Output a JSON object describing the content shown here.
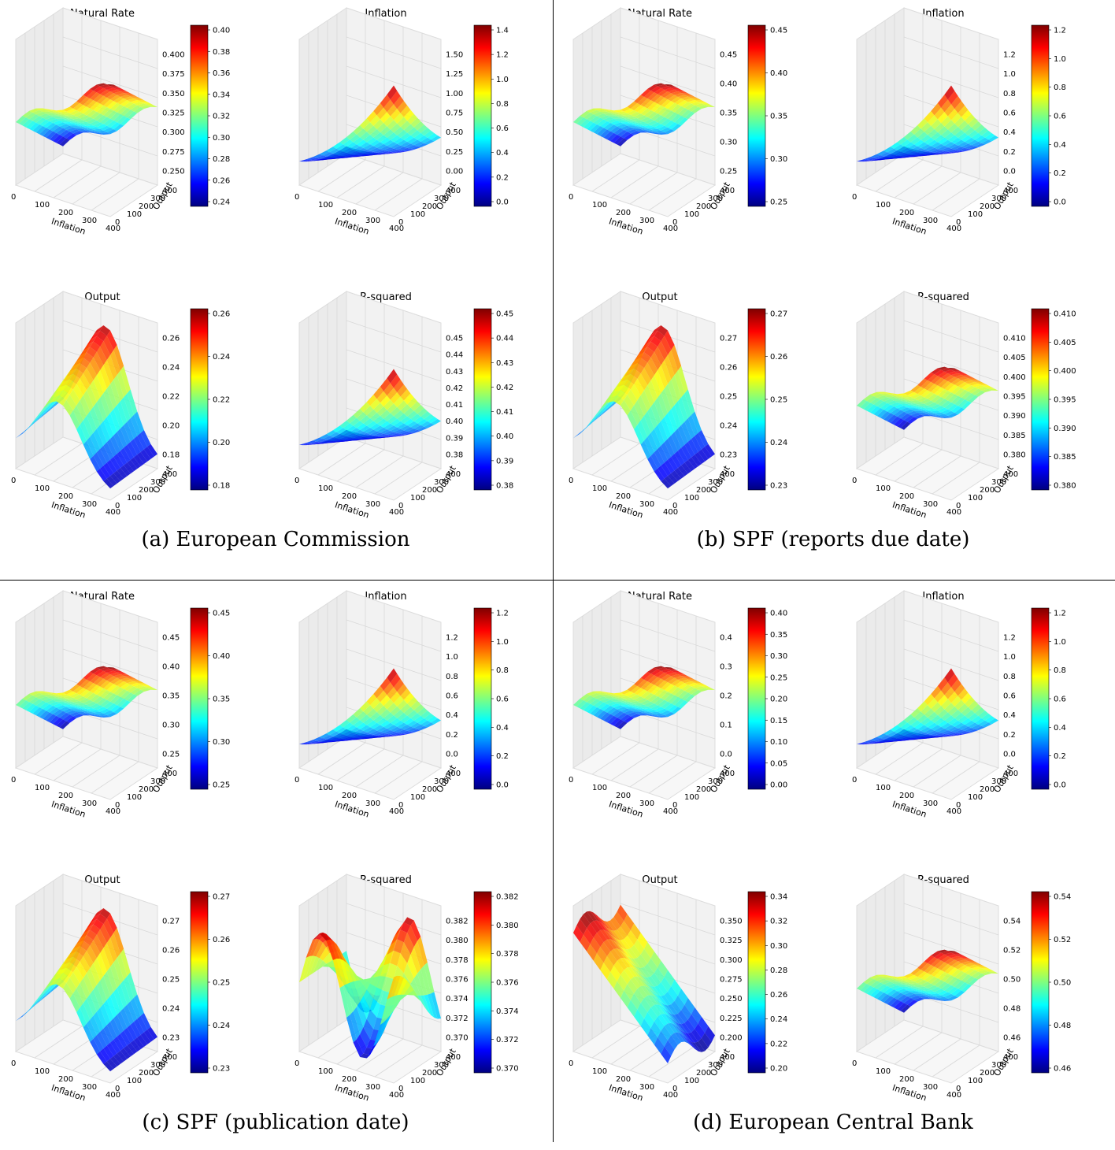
{
  "panels": [
    {
      "caption": "(a) European Commission",
      "charts": [
        {
          "title": "Natural Rate",
          "zlabel": "Coefficient",
          "zticks": [
            "0.400",
            "0.375",
            "0.350",
            "0.325",
            "0.300",
            "0.275",
            "0.250"
          ],
          "cbar": [
            "0.40",
            "0.38",
            "0.36",
            "0.34",
            "0.32",
            "0.30",
            "0.28",
            "0.26",
            "0.24"
          ],
          "shape": "ridge"
        },
        {
          "title": "Inflation",
          "zlabel": "Coefficient",
          "zticks": [
            "1.50",
            "1.25",
            "1.00",
            "0.75",
            "0.50",
            "0.25",
            "0.00"
          ],
          "cbar": [
            "1.4",
            "1.2",
            "1.0",
            "0.8",
            "0.6",
            "0.4",
            "0.2",
            "0.0"
          ],
          "shape": "rise"
        },
        {
          "title": "Output",
          "zlabel": "Coefficient",
          "zticks": [
            "0.26",
            "0.24",
            "0.22",
            "0.20",
            "0.18"
          ],
          "cbar": [
            "0.26",
            "0.24",
            "0.22",
            "0.20",
            "0.18"
          ],
          "shape": "dome"
        },
        {
          "title": "R-squared",
          "zlabel": "R-squared",
          "zticks": [
            "0.45",
            "0.44",
            "0.43",
            "0.42",
            "0.41",
            "0.40",
            "0.39",
            "0.38"
          ],
          "cbar": [
            "0.45",
            "0.44",
            "0.43",
            "0.42",
            "0.41",
            "0.40",
            "0.39",
            "0.38"
          ],
          "shape": "rise"
        }
      ]
    },
    {
      "caption": "(b) SPF (reports due date)",
      "charts": [
        {
          "title": "Natural Rate",
          "zlabel": "Coefficient",
          "zticks": [
            "0.45",
            "0.40",
            "0.35",
            "0.30",
            "0.25"
          ],
          "cbar": [
            "0.45",
            "0.40",
            "0.35",
            "0.30",
            "0.25"
          ],
          "shape": "ridge"
        },
        {
          "title": "Inflation",
          "zlabel": "Coefficient",
          "zticks": [
            "1.2",
            "1.0",
            "0.8",
            "0.6",
            "0.4",
            "0.2",
            "0.0"
          ],
          "cbar": [
            "1.2",
            "1.0",
            "0.8",
            "0.6",
            "0.4",
            "0.2",
            "0.0"
          ],
          "shape": "rise"
        },
        {
          "title": "Output",
          "zlabel": "Coefficient",
          "zticks": [
            "0.27",
            "0.26",
            "0.25",
            "0.24",
            "0.23"
          ],
          "cbar": [
            "0.27",
            "0.26",
            "0.25",
            "0.24",
            "0.23"
          ],
          "shape": "dome"
        },
        {
          "title": "R-squared",
          "zlabel": "R-squared",
          "zticks": [
            "0.410",
            "0.405",
            "0.400",
            "0.395",
            "0.390",
            "0.385",
            "0.380"
          ],
          "cbar": [
            "0.410",
            "0.405",
            "0.400",
            "0.395",
            "0.390",
            "0.385",
            "0.380"
          ],
          "shape": "ridge"
        }
      ]
    },
    {
      "caption": "(c) SPF (publication date)",
      "charts": [
        {
          "title": "Natural Rate",
          "zlabel": "Coefficient",
          "zticks": [
            "0.45",
            "0.40",
            "0.35",
            "0.30",
            "0.25"
          ],
          "cbar": [
            "0.45",
            "0.40",
            "0.35",
            "0.30",
            "0.25"
          ],
          "shape": "ridge"
        },
        {
          "title": "Inflation",
          "zlabel": "Coefficient",
          "zticks": [
            "1.2",
            "1.0",
            "0.8",
            "0.6",
            "0.4",
            "0.2",
            "0.0"
          ],
          "cbar": [
            "1.2",
            "1.0",
            "0.8",
            "0.6",
            "0.4",
            "0.2",
            "0.0"
          ],
          "shape": "rise"
        },
        {
          "title": "Output",
          "zlabel": "Coefficient",
          "zticks": [
            "0.27",
            "0.26",
            "0.25",
            "0.24",
            "0.23"
          ],
          "cbar": [
            "0.27",
            "0.26",
            "0.25",
            "0.24",
            "0.23"
          ],
          "shape": "dome"
        },
        {
          "title": "R-squared",
          "zlabel": "R-squared",
          "zticks": [
            "0.382",
            "0.380",
            "0.378",
            "0.376",
            "0.374",
            "0.372",
            "0.370"
          ],
          "cbar": [
            "0.382",
            "0.380",
            "0.378",
            "0.376",
            "0.374",
            "0.372",
            "0.370"
          ],
          "shape": "wave"
        }
      ]
    },
    {
      "caption": "(d) European Central Bank",
      "charts": [
        {
          "title": "Natural Rate",
          "zlabel": "Coefficient",
          "zticks": [
            "0.4",
            "0.3",
            "0.2",
            "0.1",
            "0.0"
          ],
          "cbar": [
            "0.40",
            "0.35",
            "0.30",
            "0.25",
            "0.20",
            "0.15",
            "0.10",
            "0.05",
            "0.00"
          ],
          "shape": "ridge"
        },
        {
          "title": "Inflation",
          "zlabel": "Coefficient",
          "zticks": [
            "1.2",
            "1.0",
            "0.8",
            "0.6",
            "0.4",
            "0.2",
            "0.0"
          ],
          "cbar": [
            "1.2",
            "1.0",
            "0.8",
            "0.6",
            "0.4",
            "0.2",
            "0.0"
          ],
          "shape": "rise"
        },
        {
          "title": "Output",
          "zlabel": "Coefficient",
          "zticks": [
            "0.350",
            "0.325",
            "0.300",
            "0.275",
            "0.250",
            "0.225",
            "0.200"
          ],
          "cbar": [
            "0.34",
            "0.32",
            "0.30",
            "0.28",
            "0.26",
            "0.24",
            "0.22",
            "0.20"
          ],
          "shape": "slope"
        },
        {
          "title": "R-squared",
          "zlabel": "R-squared",
          "zticks": [
            "0.54",
            "0.52",
            "0.50",
            "0.48",
            "0.46"
          ],
          "cbar": [
            "0.54",
            "0.52",
            "0.50",
            "0.48",
            "0.46"
          ],
          "shape": "ridge"
        }
      ]
    }
  ],
  "axis": {
    "xlabel": "Inflation",
    "ylabel": "Output",
    "xticks": [
      "0",
      "100",
      "200",
      "300",
      "400"
    ],
    "yticks": [
      "0",
      "100",
      "200",
      "300",
      "400"
    ]
  },
  "chart_data": [
    {
      "type": "surface",
      "panel": "(a) European Commission",
      "title": "Natural Rate",
      "xlabel": "Inflation",
      "ylabel": "Output",
      "zlabel": "Coefficient",
      "x_range": [
        0,
        400
      ],
      "y_range": [
        0,
        400
      ],
      "z_range": [
        0.24,
        0.4
      ]
    },
    {
      "type": "surface",
      "panel": "(a) European Commission",
      "title": "Inflation",
      "xlabel": "Inflation",
      "ylabel": "Output",
      "zlabel": "Coefficient",
      "x_range": [
        0,
        400
      ],
      "y_range": [
        0,
        400
      ],
      "z_range": [
        0.0,
        1.5
      ]
    },
    {
      "type": "surface",
      "panel": "(a) European Commission",
      "title": "Output",
      "xlabel": "Inflation",
      "ylabel": "Output",
      "zlabel": "Coefficient",
      "x_range": [
        0,
        400
      ],
      "y_range": [
        0,
        400
      ],
      "z_range": [
        0.18,
        0.26
      ]
    },
    {
      "type": "surface",
      "panel": "(a) European Commission",
      "title": "R-squared",
      "xlabel": "Inflation",
      "ylabel": "Output",
      "zlabel": "R-squared",
      "x_range": [
        0,
        400
      ],
      "y_range": [
        0,
        400
      ],
      "z_range": [
        0.38,
        0.45
      ]
    },
    {
      "type": "surface",
      "panel": "(b) SPF (reports due date)",
      "title": "Natural Rate",
      "xlabel": "Inflation",
      "ylabel": "Output",
      "zlabel": "Coefficient",
      "x_range": [
        0,
        400
      ],
      "y_range": [
        0,
        400
      ],
      "z_range": [
        0.24,
        0.45
      ]
    },
    {
      "type": "surface",
      "panel": "(b) SPF (reports due date)",
      "title": "Inflation",
      "xlabel": "Inflation",
      "ylabel": "Output",
      "zlabel": "Coefficient",
      "x_range": [
        0,
        400
      ],
      "y_range": [
        0,
        400
      ],
      "z_range": [
        0.0,
        1.25
      ]
    },
    {
      "type": "surface",
      "panel": "(b) SPF (reports due date)",
      "title": "Output",
      "xlabel": "Inflation",
      "ylabel": "Output",
      "zlabel": "Coefficient",
      "x_range": [
        0,
        400
      ],
      "y_range": [
        0,
        400
      ],
      "z_range": [
        0.225,
        0.27
      ]
    },
    {
      "type": "surface",
      "panel": "(b) SPF (reports due date)",
      "title": "R-squared",
      "xlabel": "Inflation",
      "ylabel": "Output",
      "zlabel": "R-squared",
      "x_range": [
        0,
        400
      ],
      "y_range": [
        0,
        400
      ],
      "z_range": [
        0.378,
        0.41
      ]
    },
    {
      "type": "surface",
      "panel": "(c) SPF (publication date)",
      "title": "Natural Rate",
      "xlabel": "Inflation",
      "ylabel": "Output",
      "zlabel": "Coefficient",
      "x_range": [
        0,
        400
      ],
      "y_range": [
        0,
        400
      ],
      "z_range": [
        0.24,
        0.45
      ]
    },
    {
      "type": "surface",
      "panel": "(c) SPF (publication date)",
      "title": "Inflation",
      "xlabel": "Inflation",
      "ylabel": "Output",
      "zlabel": "Coefficient",
      "x_range": [
        0,
        400
      ],
      "y_range": [
        0,
        400
      ],
      "z_range": [
        0.0,
        1.3
      ]
    },
    {
      "type": "surface",
      "panel": "(c) SPF (publication date)",
      "title": "Output",
      "xlabel": "Inflation",
      "ylabel": "Output",
      "zlabel": "Coefficient",
      "x_range": [
        0,
        400
      ],
      "y_range": [
        0,
        400
      ],
      "z_range": [
        0.225,
        0.275
      ]
    },
    {
      "type": "surface",
      "panel": "(c) SPF (publication date)",
      "title": "R-squared",
      "xlabel": "Inflation",
      "ylabel": "Output",
      "zlabel": "R-squared",
      "x_range": [
        0,
        400
      ],
      "y_range": [
        0,
        400
      ],
      "z_range": [
        0.369,
        0.382
      ]
    },
    {
      "type": "surface",
      "panel": "(d) European Central Bank",
      "title": "Natural Rate",
      "xlabel": "Inflation",
      "ylabel": "Output",
      "zlabel": "Coefficient",
      "x_range": [
        0,
        400
      ],
      "y_range": [
        0,
        400
      ],
      "z_range": [
        0.0,
        0.4
      ]
    },
    {
      "type": "surface",
      "panel": "(d) European Central Bank",
      "title": "Inflation",
      "xlabel": "Inflation",
      "ylabel": "Output",
      "zlabel": "Coefficient",
      "x_range": [
        0,
        400
      ],
      "y_range": [
        0,
        400
      ],
      "z_range": [
        0.0,
        1.2
      ]
    },
    {
      "type": "surface",
      "panel": "(d) European Central Bank",
      "title": "Output",
      "xlabel": "Inflation",
      "ylabel": "Output",
      "zlabel": "Coefficient",
      "x_range": [
        0,
        400
      ],
      "y_range": [
        0,
        400
      ],
      "z_range": [
        0.195,
        0.35
      ]
    },
    {
      "type": "surface",
      "panel": "(d) European Central Bank",
      "title": "R-squared",
      "xlabel": "Inflation",
      "ylabel": "Output",
      "zlabel": "R-squared",
      "x_range": [
        0,
        400
      ],
      "y_range": [
        0,
        400
      ],
      "z_range": [
        0.45,
        0.55
      ]
    }
  ]
}
